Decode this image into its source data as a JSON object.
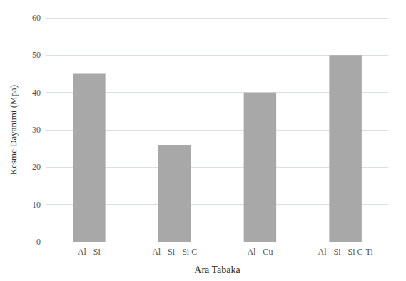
{
  "chart_data": {
    "type": "bar",
    "categories": [
      "Al - Si",
      "Al - Si - Si C",
      "Al - Cu",
      "Al - Si - Si C-Ti"
    ],
    "values": [
      45,
      26,
      40,
      50
    ],
    "color": "#a8a8a8",
    "xlabel": "Ara Tabaka",
    "ylabel": "Kesme Dayanimi (Mpa)",
    "ylim": [
      0,
      60
    ],
    "yticks": [
      0,
      10,
      20,
      30,
      40,
      50,
      60
    ],
    "grid": true
  }
}
